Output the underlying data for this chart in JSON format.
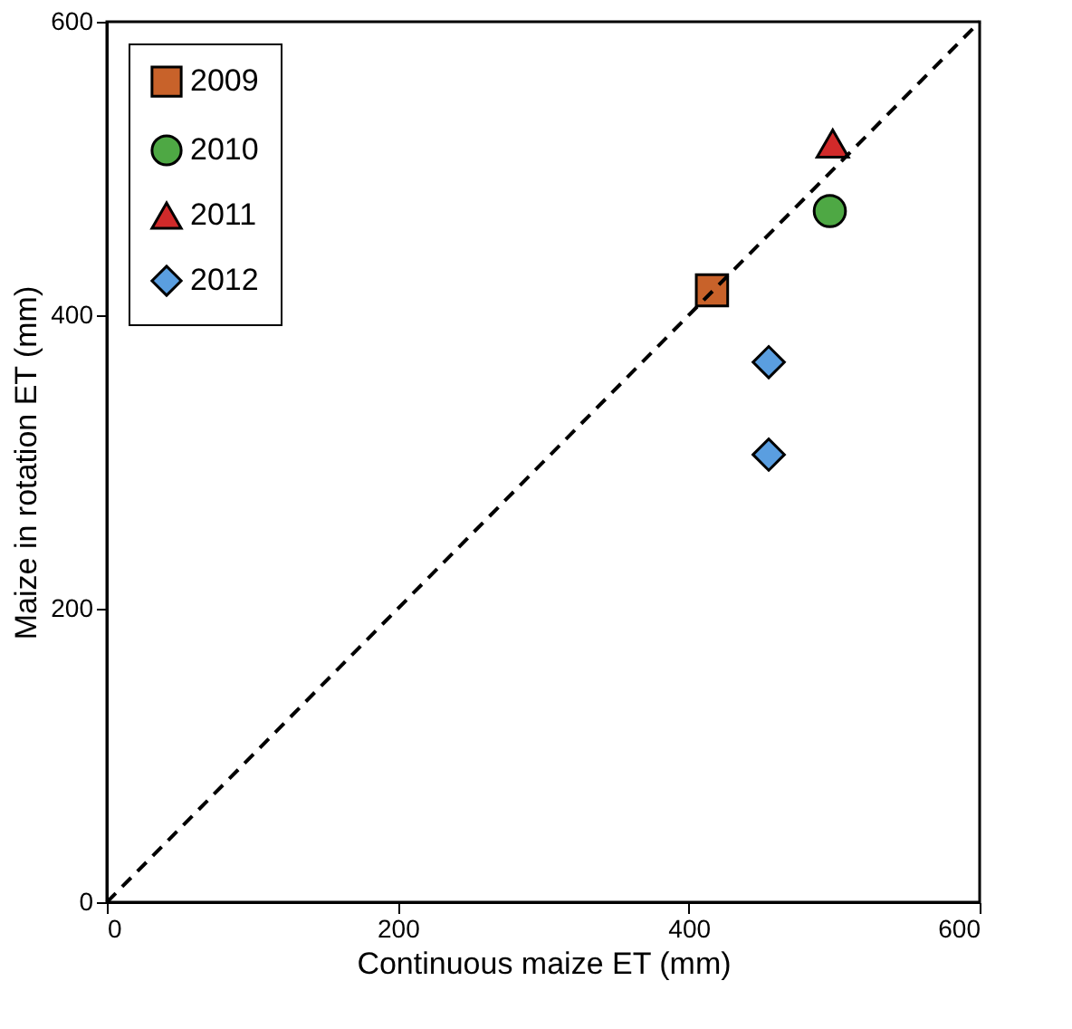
{
  "chart_data": {
    "type": "scatter",
    "xlabel": "Continuous maize ET (mm)",
    "ylabel": "Maize in rotation ET (mm)",
    "xlim": [
      0,
      600
    ],
    "ylim": [
      0,
      600
    ],
    "xticks": [
      0,
      200,
      400,
      600
    ],
    "yticks": [
      0,
      200,
      400,
      600
    ],
    "grid": false,
    "legend": "top left",
    "series": [
      {
        "name": "2009",
        "color": "#c8622a",
        "marker": "square",
        "x": [
          416
        ],
        "values": [
          417
        ]
      },
      {
        "name": "2010",
        "color": "#4ea844",
        "marker": "circle",
        "x": [
          497
        ],
        "values": [
          471
        ]
      },
      {
        "name": "2011",
        "color": "#d12a2a",
        "marker": "triangle",
        "x": [
          499
        ],
        "values": [
          517
        ]
      },
      {
        "name": "2012",
        "color": "#5a9ee0",
        "marker": "diamond",
        "x": [
          455,
          455
        ],
        "values": [
          368,
          305
        ]
      },
      {
        "type": "line",
        "color": "#000000",
        "line_style": "dashed",
        "marker": "none",
        "x": [
          0,
          600
        ],
        "values": [
          0,
          600
        ]
      }
    ]
  }
}
